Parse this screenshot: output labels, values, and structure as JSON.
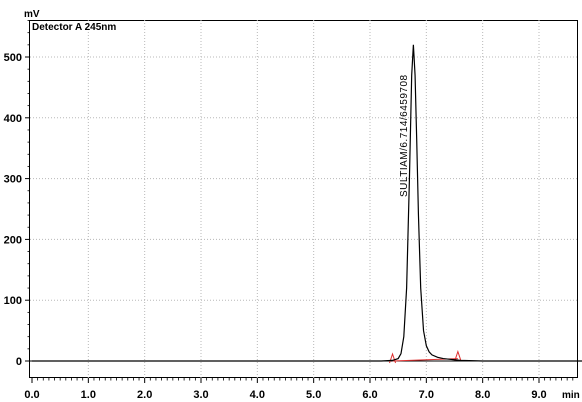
{
  "chart_data": {
    "type": "line",
    "y_unit": "mV",
    "x_unit": "min",
    "detector": "Detector A 245nm",
    "xlim": [
      0,
      10
    ],
    "ylim": [
      -20,
      560
    ],
    "x_ticks": [
      "0.0",
      "1.0",
      "2.0",
      "3.0",
      "4.0",
      "5.0",
      "6.0",
      "7.0",
      "8.0",
      "9.0"
    ],
    "y_ticks": [
      "0",
      "100",
      "200",
      "300",
      "400",
      "500"
    ],
    "grid": true,
    "series": [
      {
        "x": [
          0.0,
          6.2,
          6.4,
          6.5,
          6.55,
          6.6,
          6.65,
          6.7,
          6.74,
          6.77,
          6.8,
          6.83,
          6.86,
          6.9,
          6.95,
          7.0,
          7.05,
          7.1,
          7.2,
          7.3,
          7.4,
          7.5,
          7.6,
          8.0,
          10.0
        ],
        "y": [
          0,
          0,
          1,
          4,
          12,
          40,
          120,
          300,
          470,
          520,
          470,
          360,
          240,
          120,
          50,
          25,
          15,
          10,
          6,
          4,
          3,
          2,
          1,
          0,
          0
        ]
      }
    ],
    "peak": {
      "label": "SULTIAM/6.714/6459708",
      "x": 6.714,
      "y": 520
    },
    "baseline_marks": [
      {
        "x": 6.4,
        "y": 0
      },
      {
        "x": 7.56,
        "y": 4
      }
    ]
  }
}
